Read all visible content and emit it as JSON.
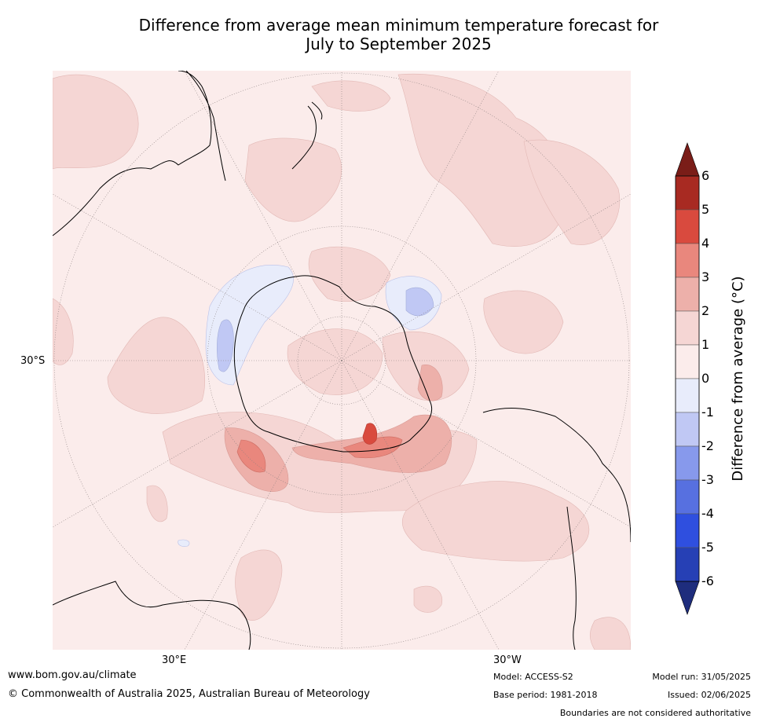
{
  "title": {
    "line1": "Difference from average mean minimum temperature forecast for",
    "line2": "July to September 2025"
  },
  "map": {
    "projection": "south polar stereographic",
    "lat_label": "30°S",
    "lon_labels": [
      "30°E",
      "30°W"
    ],
    "colors": {
      "ocean_base": "#fbeceb",
      "warm_1_2": "#f5d6d4",
      "warm_2_3": "#edb0aa",
      "warm_3_4": "#e9877d",
      "warm_4_5": "#d94a3e",
      "cool_0_1": "#e8ecfb",
      "cool_1_2": "#c0c8f4"
    }
  },
  "colorbar": {
    "label": "Difference from average (°C)",
    "ticks": [
      "6",
      "5",
      "4",
      "3",
      "2",
      "1",
      "0",
      "-1",
      "-2",
      "-3",
      "-4",
      "-5",
      "-6"
    ],
    "bands": [
      {
        "from": 6,
        "to": 5,
        "color": "#a82a22"
      },
      {
        "from": 5,
        "to": 4,
        "color": "#d94a3e"
      },
      {
        "from": 4,
        "to": 3,
        "color": "#e9877d"
      },
      {
        "from": 3,
        "to": 2,
        "color": "#edb0aa"
      },
      {
        "from": 2,
        "to": 1,
        "color": "#f5d6d4"
      },
      {
        "from": 1,
        "to": 0,
        "color": "#fbeceb"
      },
      {
        "from": 0,
        "to": -1,
        "color": "#e8ecfb"
      },
      {
        "from": -1,
        "to": -2,
        "color": "#c0c8f4"
      },
      {
        "from": -2,
        "to": -3,
        "color": "#8799ec"
      },
      {
        "from": -3,
        "to": -4,
        "color": "#5770e0"
      },
      {
        "from": -4,
        "to": -5,
        "color": "#2f4fdf"
      },
      {
        "from": -5,
        "to": -6,
        "color": "#2640b5"
      }
    ],
    "top_arrow_color": "#7a1d18",
    "bottom_arrow_color": "#1e2d7d"
  },
  "footer": {
    "url": "www.bom.gov.au/climate",
    "copyright": "© Commonwealth of Australia 2025, Australian Bureau of Meteorology",
    "model": "Model: ACCESS-S2",
    "base_period": "Base period: 1981-2018",
    "model_run": "Model run: 31/05/2025",
    "issued": "Issued: 02/06/2025",
    "disclaimer": "Boundaries are not considered authoritative"
  }
}
